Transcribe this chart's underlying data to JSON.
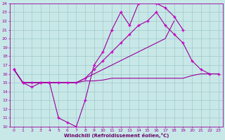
{
  "background_color": "#c8e8e8",
  "grid_color": "#a0c8c8",
  "line_color": "#990099",
  "marker_color": "#cc00cc",
  "xlabel": "Windchill (Refroidissement éolien,°C)",
  "xlabel_color": "#660066",
  "xlim": [
    -0.5,
    23.5
  ],
  "ylim": [
    10,
    24
  ],
  "xticks": [
    0,
    1,
    2,
    3,
    4,
    5,
    6,
    7,
    8,
    9,
    10,
    11,
    12,
    13,
    14,
    15,
    16,
    17,
    18,
    19,
    20,
    21,
    22,
    23
  ],
  "yticks": [
    10,
    11,
    12,
    13,
    14,
    15,
    16,
    17,
    18,
    19,
    20,
    21,
    22,
    23,
    24
  ],
  "series": [
    {
      "x": [
        0,
        1,
        2,
        3,
        4,
        5,
        6,
        7,
        8,
        9,
        10,
        11,
        12,
        13,
        14,
        15,
        16,
        17,
        18,
        19
      ],
      "y": [
        16.5,
        15.0,
        14.5,
        15.0,
        15.0,
        11.0,
        10.5,
        10.0,
        13.0,
        17.0,
        18.5,
        21.0,
        23.0,
        21.5,
        24.0,
        24.2,
        24.0,
        23.5,
        22.5,
        21.0
      ],
      "has_markers": true
    },
    {
      "x": [
        0,
        1,
        2,
        3,
        4,
        5,
        6,
        7,
        8,
        9,
        10,
        11,
        12,
        13,
        14,
        15,
        16,
        17,
        18,
        19,
        20,
        21,
        22,
        23
      ],
      "y": [
        16.5,
        15.0,
        15.0,
        15.0,
        15.0,
        15.0,
        15.0,
        15.0,
        15.2,
        15.2,
        15.3,
        15.5,
        15.5,
        15.5,
        15.5,
        15.5,
        15.5,
        15.5,
        15.5,
        15.5,
        15.8,
        16.0,
        16.0,
        16.0
      ],
      "has_markers": false
    },
    {
      "x": [
        0,
        1,
        2,
        3,
        4,
        5,
        6,
        7,
        8,
        9,
        10,
        11,
        12,
        13,
        14,
        15,
        16,
        17,
        18
      ],
      "y": [
        16.5,
        15.0,
        15.0,
        15.0,
        15.0,
        15.0,
        15.0,
        15.0,
        15.5,
        16.0,
        16.5,
        17.0,
        17.5,
        18.0,
        18.5,
        19.0,
        19.5,
        20.0,
        22.0
      ],
      "has_markers": false
    },
    {
      "x": [
        0,
        1,
        2,
        3,
        4,
        5,
        6,
        7,
        8,
        9,
        10,
        11,
        12,
        13,
        14,
        15,
        16,
        17,
        18,
        19,
        20,
        21,
        22,
        23
      ],
      "y": [
        16.5,
        15.0,
        15.0,
        15.0,
        15.0,
        15.0,
        15.0,
        15.0,
        15.5,
        16.5,
        17.5,
        18.5,
        19.5,
        20.5,
        21.5,
        22.0,
        23.0,
        21.5,
        20.5,
        19.5,
        17.5,
        16.5,
        16.0,
        16.0
      ],
      "has_markers": true
    }
  ]
}
